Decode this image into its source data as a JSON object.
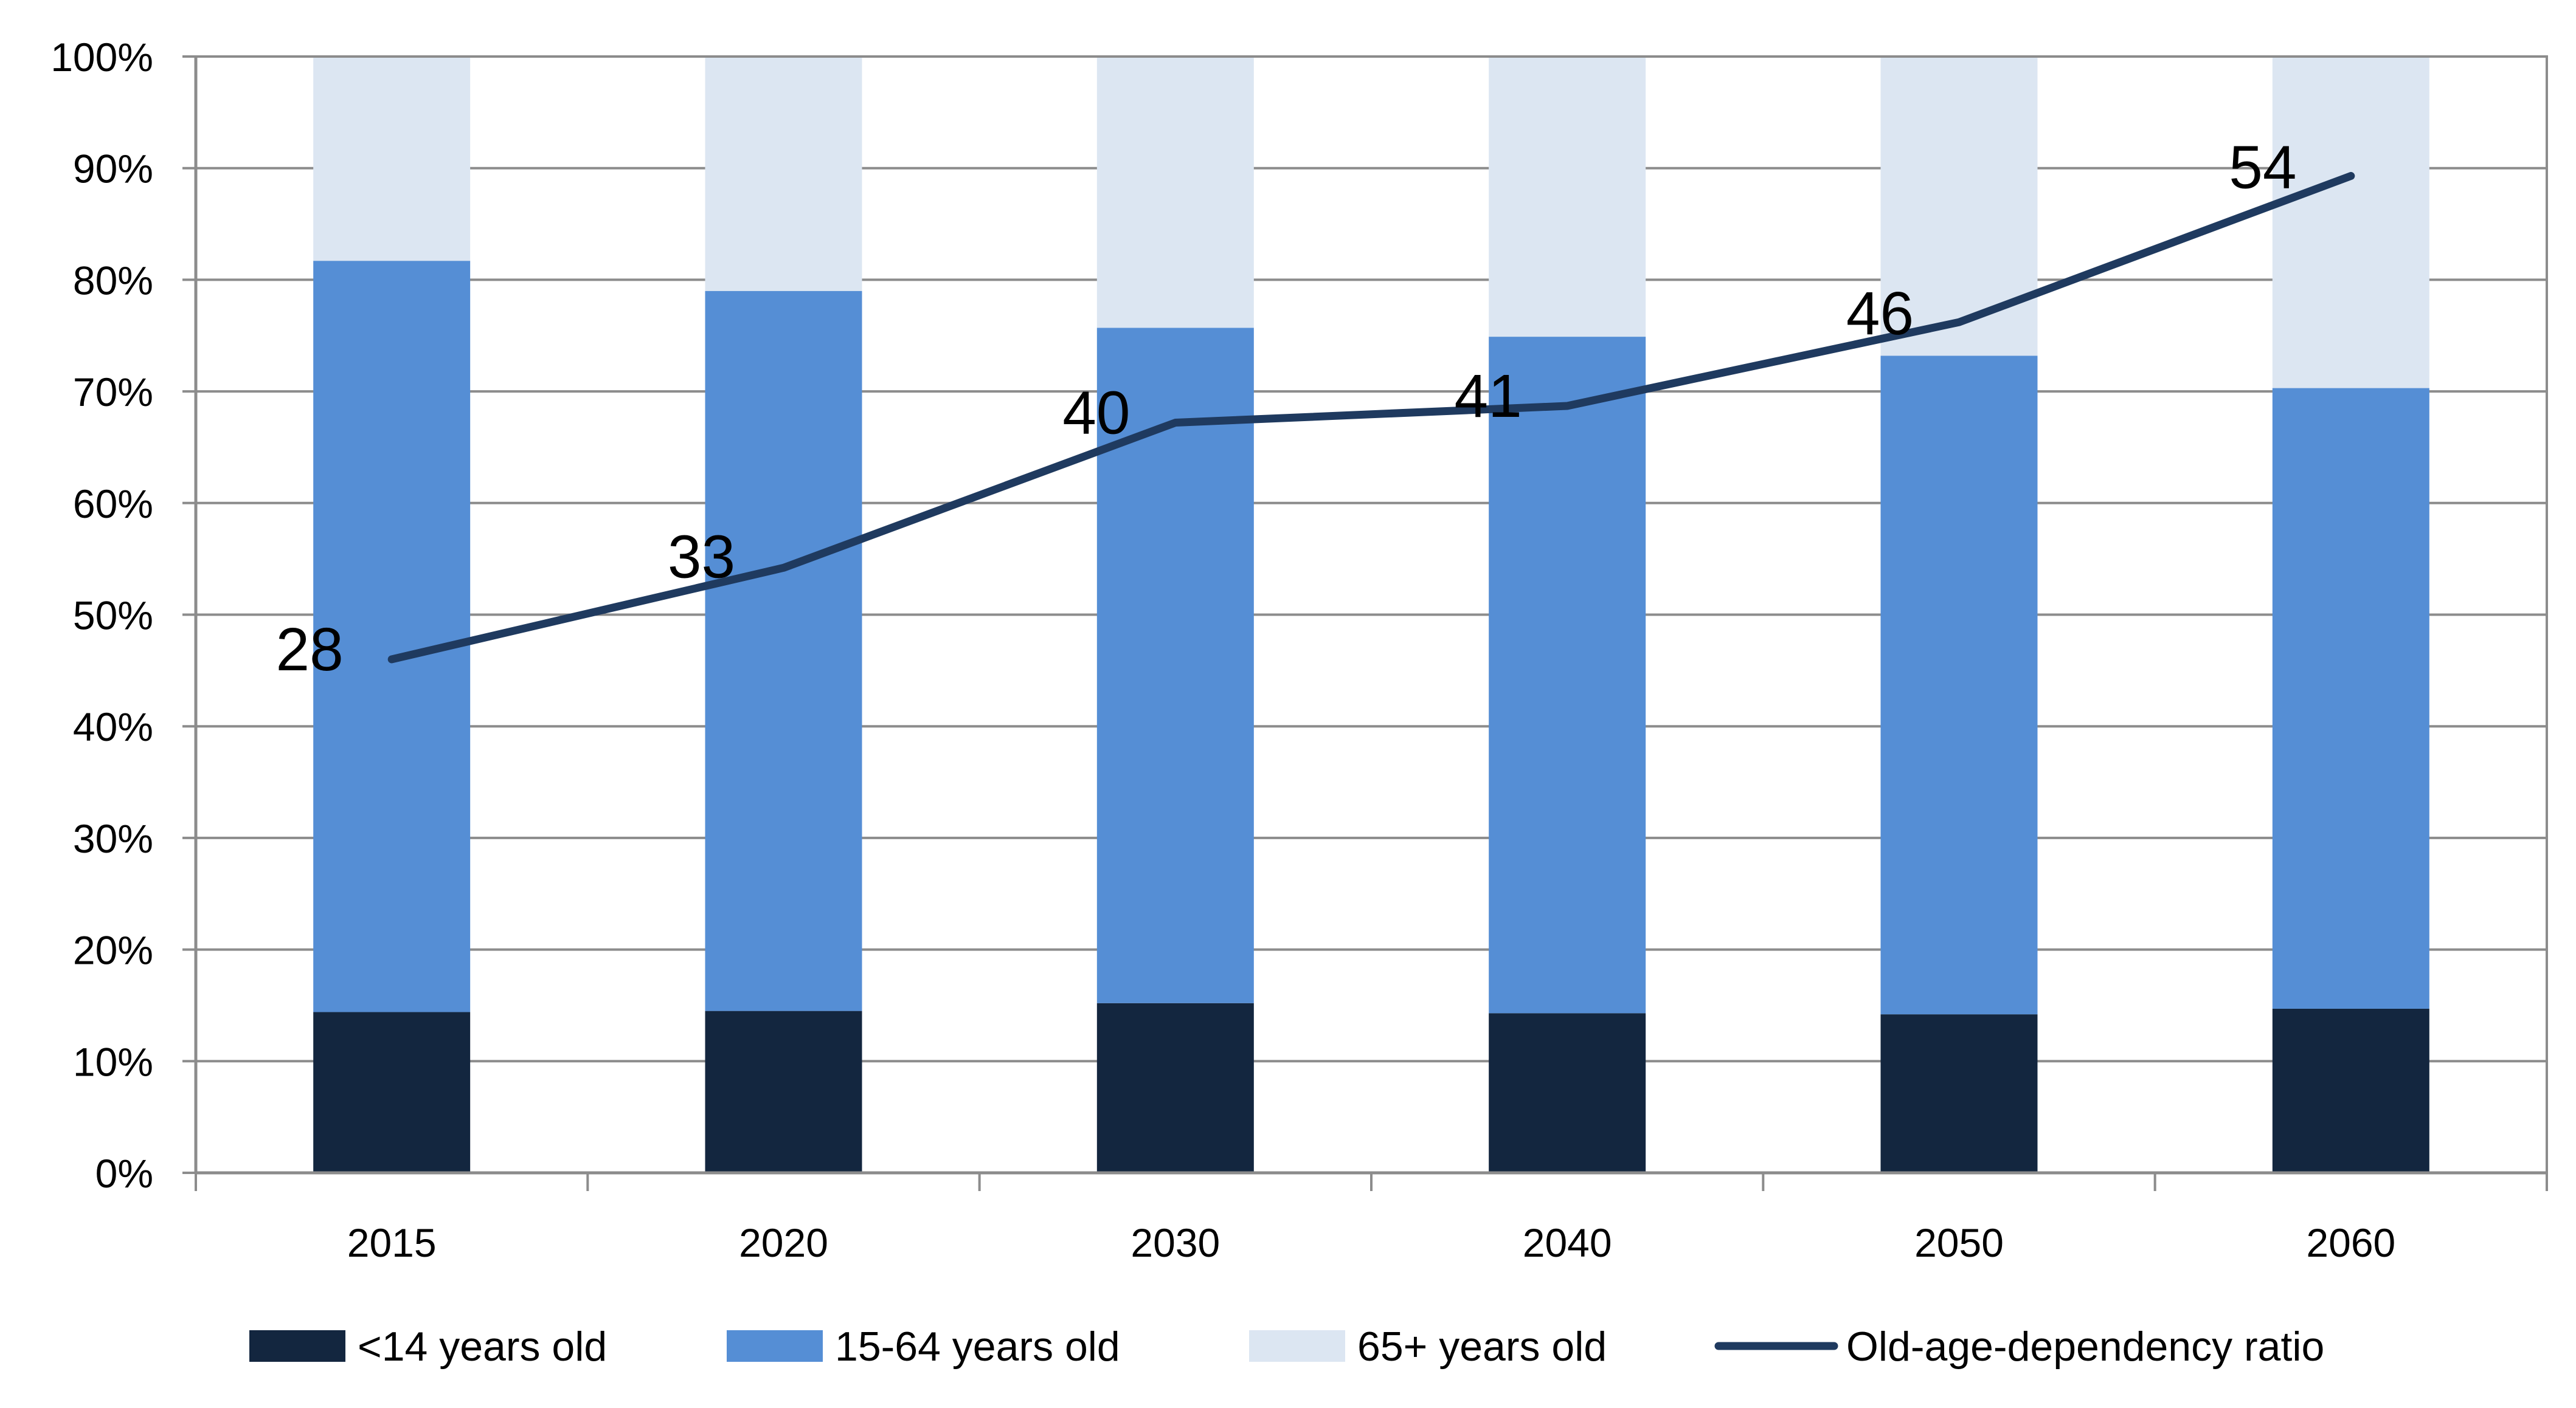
{
  "chart_data": {
    "type": "bar",
    "stacked": true,
    "categories": [
      "2015",
      "2020",
      "2030",
      "2040",
      "2050",
      "2060"
    ],
    "series": [
      {
        "name": "<14 years old",
        "kind": "bar",
        "color": "#13263f",
        "values": [
          14.4,
          14.5,
          15.2,
          14.3,
          14.2,
          14.7
        ]
      },
      {
        "name": "15-64 years old",
        "kind": "bar",
        "color": "#558ed5",
        "values": [
          67.3,
          64.5,
          60.5,
          60.6,
          59.0,
          55.6
        ]
      },
      {
        "name": "65+ years old",
        "kind": "bar",
        "color": "#dce6f2",
        "values": [
          18.3,
          21.0,
          24.3,
          25.1,
          26.8,
          29.7
        ]
      },
      {
        "name": "Old-age-dependency ratio",
        "kind": "line",
        "color": "#1f3a5f",
        "values": [
          46.0,
          54.2,
          67.2,
          68.7,
          76.2,
          89.3
        ],
        "labels": [
          "28",
          "33",
          "40",
          "41",
          "46",
          "54"
        ]
      }
    ],
    "y_ticks": [
      "0%",
      "10%",
      "20%",
      "30%",
      "40%",
      "50%",
      "60%",
      "70%",
      "80%",
      "90%",
      "100%"
    ],
    "ylim": [
      0,
      100
    ],
    "grid": true,
    "legend_position": "bottom",
    "title": "",
    "xlabel": "",
    "ylabel": ""
  }
}
